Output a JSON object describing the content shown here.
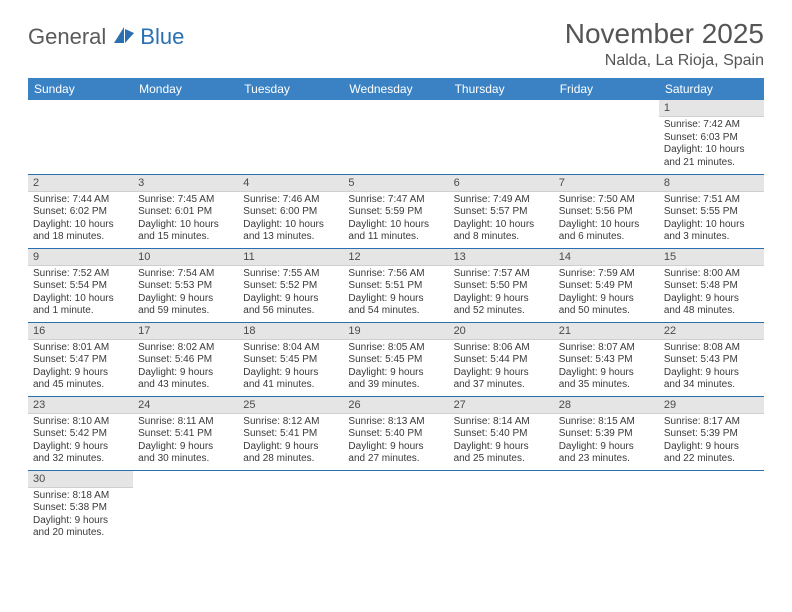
{
  "logo": {
    "part1": "General",
    "part2": "Blue"
  },
  "title": "November 2025",
  "location": "Nalda, La Rioja, Spain",
  "colors": {
    "header_bg": "#3a82c4",
    "header_text": "#ffffff",
    "daynum_bg": "#e5e5e5",
    "row_border": "#2b6fb3",
    "logo_accent": "#2b6fb3",
    "text": "#3a3a3a"
  },
  "weekdays": [
    "Sunday",
    "Monday",
    "Tuesday",
    "Wednesday",
    "Thursday",
    "Friday",
    "Saturday"
  ],
  "weeks": [
    [
      {
        "day": "",
        "lines": [
          "",
          "",
          "",
          ""
        ]
      },
      {
        "day": "",
        "lines": [
          "",
          "",
          "",
          ""
        ]
      },
      {
        "day": "",
        "lines": [
          "",
          "",
          "",
          ""
        ]
      },
      {
        "day": "",
        "lines": [
          "",
          "",
          "",
          ""
        ]
      },
      {
        "day": "",
        "lines": [
          "",
          "",
          "",
          ""
        ]
      },
      {
        "day": "",
        "lines": [
          "",
          "",
          "",
          ""
        ]
      },
      {
        "day": "1",
        "lines": [
          "Sunrise: 7:42 AM",
          "Sunset: 6:03 PM",
          "Daylight: 10 hours",
          "and 21 minutes."
        ]
      }
    ],
    [
      {
        "day": "2",
        "lines": [
          "Sunrise: 7:44 AM",
          "Sunset: 6:02 PM",
          "Daylight: 10 hours",
          "and 18 minutes."
        ]
      },
      {
        "day": "3",
        "lines": [
          "Sunrise: 7:45 AM",
          "Sunset: 6:01 PM",
          "Daylight: 10 hours",
          "and 15 minutes."
        ]
      },
      {
        "day": "4",
        "lines": [
          "Sunrise: 7:46 AM",
          "Sunset: 6:00 PM",
          "Daylight: 10 hours",
          "and 13 minutes."
        ]
      },
      {
        "day": "5",
        "lines": [
          "Sunrise: 7:47 AM",
          "Sunset: 5:59 PM",
          "Daylight: 10 hours",
          "and 11 minutes."
        ]
      },
      {
        "day": "6",
        "lines": [
          "Sunrise: 7:49 AM",
          "Sunset: 5:57 PM",
          "Daylight: 10 hours",
          "and 8 minutes."
        ]
      },
      {
        "day": "7",
        "lines": [
          "Sunrise: 7:50 AM",
          "Sunset: 5:56 PM",
          "Daylight: 10 hours",
          "and 6 minutes."
        ]
      },
      {
        "day": "8",
        "lines": [
          "Sunrise: 7:51 AM",
          "Sunset: 5:55 PM",
          "Daylight: 10 hours",
          "and 3 minutes."
        ]
      }
    ],
    [
      {
        "day": "9",
        "lines": [
          "Sunrise: 7:52 AM",
          "Sunset: 5:54 PM",
          "Daylight: 10 hours",
          "and 1 minute."
        ]
      },
      {
        "day": "10",
        "lines": [
          "Sunrise: 7:54 AM",
          "Sunset: 5:53 PM",
          "Daylight: 9 hours",
          "and 59 minutes."
        ]
      },
      {
        "day": "11",
        "lines": [
          "Sunrise: 7:55 AM",
          "Sunset: 5:52 PM",
          "Daylight: 9 hours",
          "and 56 minutes."
        ]
      },
      {
        "day": "12",
        "lines": [
          "Sunrise: 7:56 AM",
          "Sunset: 5:51 PM",
          "Daylight: 9 hours",
          "and 54 minutes."
        ]
      },
      {
        "day": "13",
        "lines": [
          "Sunrise: 7:57 AM",
          "Sunset: 5:50 PM",
          "Daylight: 9 hours",
          "and 52 minutes."
        ]
      },
      {
        "day": "14",
        "lines": [
          "Sunrise: 7:59 AM",
          "Sunset: 5:49 PM",
          "Daylight: 9 hours",
          "and 50 minutes."
        ]
      },
      {
        "day": "15",
        "lines": [
          "Sunrise: 8:00 AM",
          "Sunset: 5:48 PM",
          "Daylight: 9 hours",
          "and 48 minutes."
        ]
      }
    ],
    [
      {
        "day": "16",
        "lines": [
          "Sunrise: 8:01 AM",
          "Sunset: 5:47 PM",
          "Daylight: 9 hours",
          "and 45 minutes."
        ]
      },
      {
        "day": "17",
        "lines": [
          "Sunrise: 8:02 AM",
          "Sunset: 5:46 PM",
          "Daylight: 9 hours",
          "and 43 minutes."
        ]
      },
      {
        "day": "18",
        "lines": [
          "Sunrise: 8:04 AM",
          "Sunset: 5:45 PM",
          "Daylight: 9 hours",
          "and 41 minutes."
        ]
      },
      {
        "day": "19",
        "lines": [
          "Sunrise: 8:05 AM",
          "Sunset: 5:45 PM",
          "Daylight: 9 hours",
          "and 39 minutes."
        ]
      },
      {
        "day": "20",
        "lines": [
          "Sunrise: 8:06 AM",
          "Sunset: 5:44 PM",
          "Daylight: 9 hours",
          "and 37 minutes."
        ]
      },
      {
        "day": "21",
        "lines": [
          "Sunrise: 8:07 AM",
          "Sunset: 5:43 PM",
          "Daylight: 9 hours",
          "and 35 minutes."
        ]
      },
      {
        "day": "22",
        "lines": [
          "Sunrise: 8:08 AM",
          "Sunset: 5:43 PM",
          "Daylight: 9 hours",
          "and 34 minutes."
        ]
      }
    ],
    [
      {
        "day": "23",
        "lines": [
          "Sunrise: 8:10 AM",
          "Sunset: 5:42 PM",
          "Daylight: 9 hours",
          "and 32 minutes."
        ]
      },
      {
        "day": "24",
        "lines": [
          "Sunrise: 8:11 AM",
          "Sunset: 5:41 PM",
          "Daylight: 9 hours",
          "and 30 minutes."
        ]
      },
      {
        "day": "25",
        "lines": [
          "Sunrise: 8:12 AM",
          "Sunset: 5:41 PM",
          "Daylight: 9 hours",
          "and 28 minutes."
        ]
      },
      {
        "day": "26",
        "lines": [
          "Sunrise: 8:13 AM",
          "Sunset: 5:40 PM",
          "Daylight: 9 hours",
          "and 27 minutes."
        ]
      },
      {
        "day": "27",
        "lines": [
          "Sunrise: 8:14 AM",
          "Sunset: 5:40 PM",
          "Daylight: 9 hours",
          "and 25 minutes."
        ]
      },
      {
        "day": "28",
        "lines": [
          "Sunrise: 8:15 AM",
          "Sunset: 5:39 PM",
          "Daylight: 9 hours",
          "and 23 minutes."
        ]
      },
      {
        "day": "29",
        "lines": [
          "Sunrise: 8:17 AM",
          "Sunset: 5:39 PM",
          "Daylight: 9 hours",
          "and 22 minutes."
        ]
      }
    ],
    [
      {
        "day": "30",
        "lines": [
          "Sunrise: 8:18 AM",
          "Sunset: 5:38 PM",
          "Daylight: 9 hours",
          "and 20 minutes."
        ]
      },
      {
        "day": "",
        "lines": [
          "",
          "",
          "",
          ""
        ]
      },
      {
        "day": "",
        "lines": [
          "",
          "",
          "",
          ""
        ]
      },
      {
        "day": "",
        "lines": [
          "",
          "",
          "",
          ""
        ]
      },
      {
        "day": "",
        "lines": [
          "",
          "",
          "",
          ""
        ]
      },
      {
        "day": "",
        "lines": [
          "",
          "",
          "",
          ""
        ]
      },
      {
        "day": "",
        "lines": [
          "",
          "",
          "",
          ""
        ]
      }
    ]
  ]
}
